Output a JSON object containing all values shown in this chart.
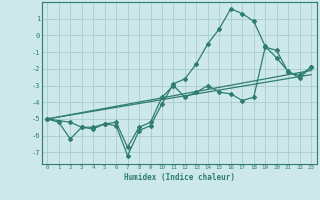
{
  "background_color": "#cce8e8",
  "grid_color": "#aacccc",
  "line_color": "#2e7d6e",
  "xlabel": "Humidex (Indice chaleur)",
  "xlim": [
    -0.5,
    23.5
  ],
  "ylim": [
    -7.7,
    2.0
  ],
  "yticks": [
    1,
    0,
    -1,
    -2,
    -3,
    -4,
    -5,
    -6,
    -7
  ],
  "xticks": [
    0,
    1,
    2,
    3,
    4,
    5,
    6,
    7,
    8,
    9,
    10,
    11,
    12,
    13,
    14,
    15,
    16,
    17,
    18,
    19,
    20,
    21,
    22,
    23
  ],
  "line1_x": [
    0,
    1,
    2,
    3,
    4,
    5,
    6,
    7,
    8,
    9,
    10,
    11,
    12,
    13,
    14,
    15,
    16,
    17,
    18,
    19,
    20,
    21,
    22,
    23
  ],
  "line1_y": [
    -5.0,
    -5.2,
    -6.2,
    -5.5,
    -5.6,
    -5.3,
    -5.4,
    -7.2,
    -5.7,
    -5.4,
    -4.1,
    -2.9,
    -2.6,
    -1.7,
    -0.5,
    0.4,
    1.6,
    1.3,
    0.85,
    -0.65,
    -1.35,
    -2.15,
    -2.55,
    -1.9
  ],
  "line2_x": [
    0,
    2,
    3,
    4,
    5,
    6,
    7,
    8,
    9,
    10,
    11,
    12,
    13,
    14,
    15,
    16,
    17,
    18,
    19,
    20,
    21,
    22,
    23
  ],
  "line2_y": [
    -5.0,
    -5.2,
    -5.5,
    -5.5,
    -5.3,
    -5.2,
    -6.7,
    -5.5,
    -5.2,
    -3.7,
    -3.0,
    -3.7,
    -3.4,
    -3.0,
    -3.4,
    -3.5,
    -3.9,
    -3.7,
    -0.7,
    -0.9,
    -2.2,
    -2.4,
    -1.9
  ],
  "line3_x": [
    0,
    23
  ],
  "line3_y": [
    -5.0,
    -2.1
  ],
  "line4_x": [
    0,
    23
  ],
  "line4_y": [
    -5.0,
    -2.35
  ]
}
